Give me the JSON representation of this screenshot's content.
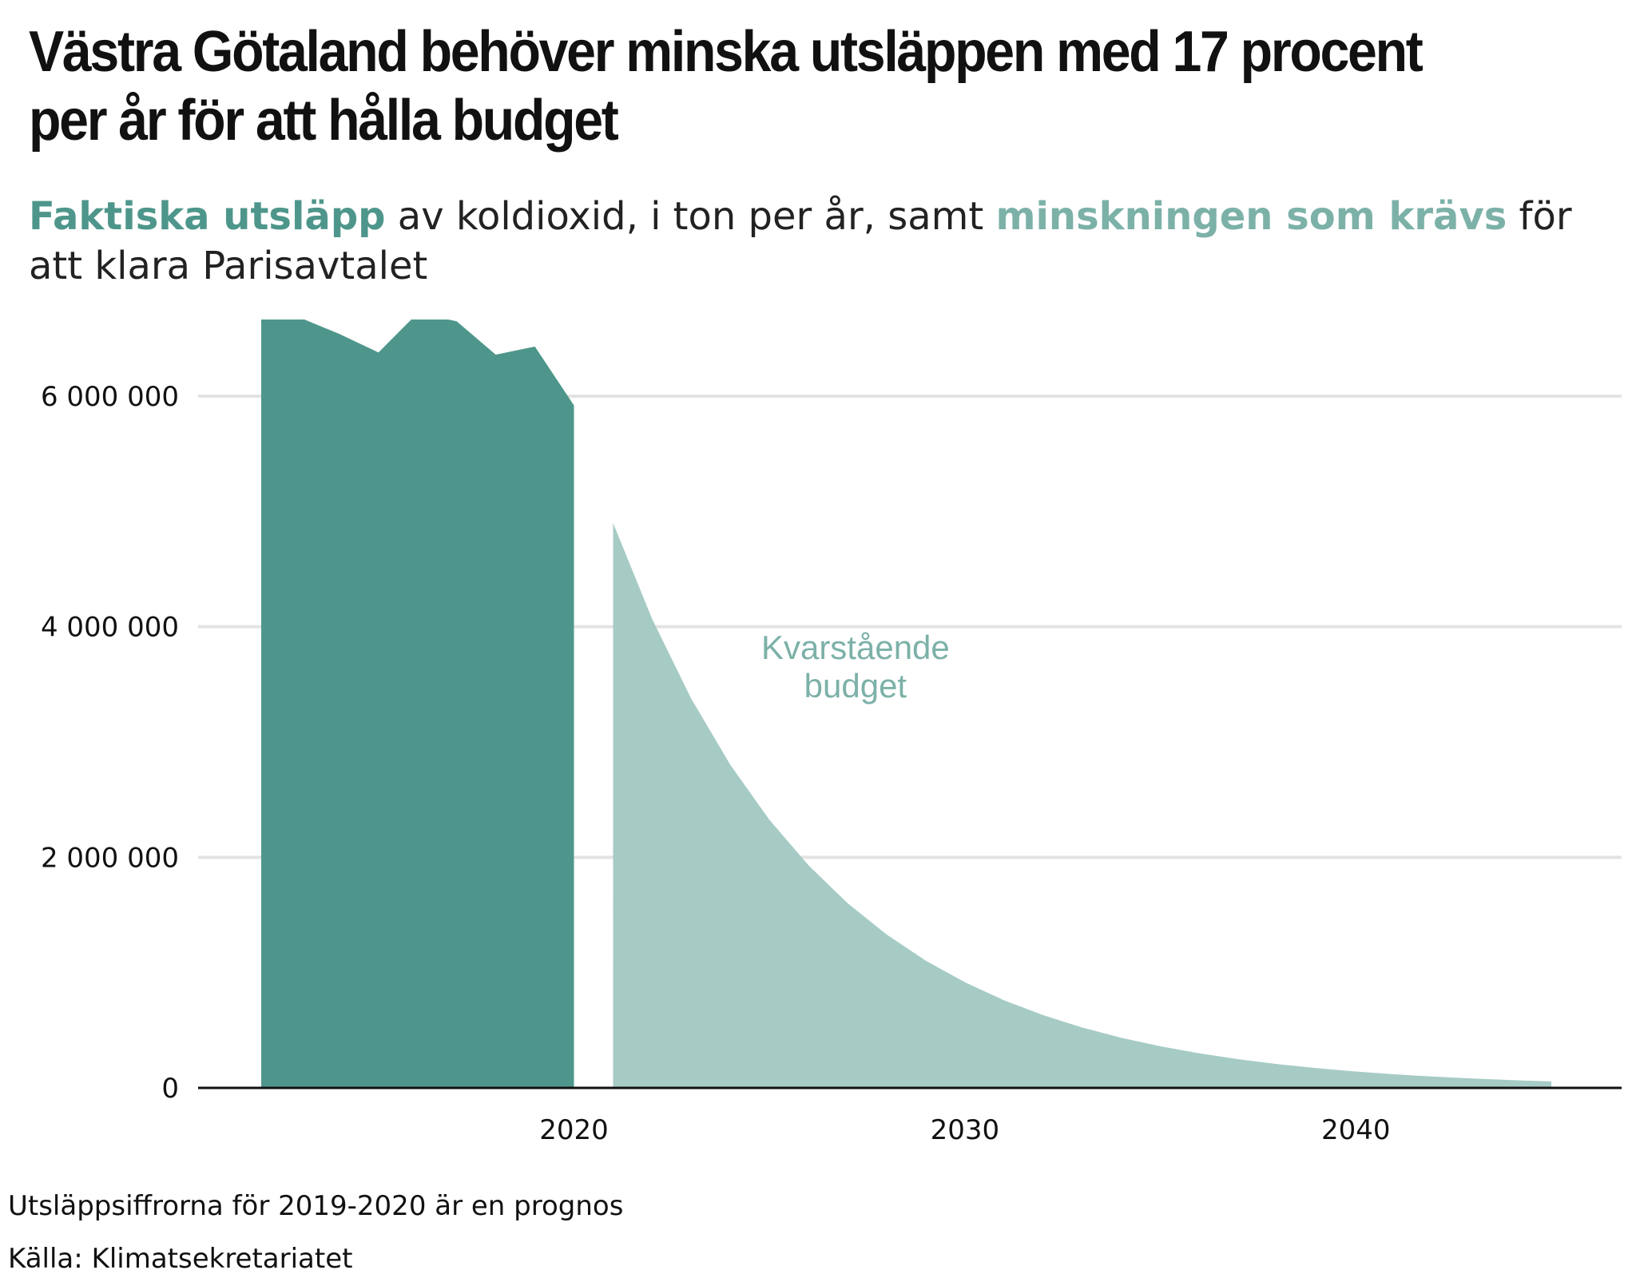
{
  "title": "Västra Götaland behöver minska utsläppen med 17 procent per år för att hålla budget",
  "subtitle": {
    "part1": "Faktiska utsläpp",
    "part2": " av koldioxid, i ton per år, samt ",
    "part3": "minskningen som krävs",
    "part4": " för att klara Parisavtalet"
  },
  "colors": {
    "actual": "#4e968b",
    "required": "#a6cbc5",
    "annotation": "#7cb1a8",
    "grid": "#e3e3e3",
    "axis": "#111111"
  },
  "chart_data": {
    "type": "area",
    "ylim": [
      0,
      7000000
    ],
    "xlim": [
      2010.4,
      2046.6
    ],
    "y_ticks": [
      {
        "value": 0,
        "label": "0"
      },
      {
        "value": 2000000,
        "label": "2 000 000"
      },
      {
        "value": 4000000,
        "label": "4 000 000"
      },
      {
        "value": 6000000,
        "label": "6 000 000"
      }
    ],
    "x_ticks": [
      {
        "value": 2020,
        "label": "2020"
      },
      {
        "value": 2030,
        "label": "2030"
      },
      {
        "value": 2040,
        "label": "2040"
      }
    ],
    "grid": true,
    "series": [
      {
        "name": "Faktiska utsläpp",
        "points": [
          [
            2012,
            6850000
          ],
          [
            2013,
            6680000
          ],
          [
            2014,
            6540000
          ],
          [
            2015,
            6380000
          ],
          [
            2016,
            6720000
          ],
          [
            2017,
            6650000
          ],
          [
            2018,
            6360000
          ],
          [
            2019,
            6430000
          ],
          [
            2020,
            5920000
          ]
        ]
      },
      {
        "name": "minskningen som krävs",
        "points": [
          [
            2021,
            4900000
          ],
          [
            2022,
            4067000
          ],
          [
            2023,
            3376000
          ],
          [
            2024,
            2802000
          ],
          [
            2025,
            2325000
          ],
          [
            2026,
            1930000
          ],
          [
            2027,
            1602000
          ],
          [
            2028,
            1330000
          ],
          [
            2029,
            1104000
          ],
          [
            2030,
            916000
          ],
          [
            2031,
            760000
          ],
          [
            2032,
            631000
          ],
          [
            2033,
            524000
          ],
          [
            2034,
            435000
          ],
          [
            2035,
            361000
          ],
          [
            2036,
            300000
          ],
          [
            2037,
            249000
          ],
          [
            2038,
            206000
          ],
          [
            2039,
            171000
          ],
          [
            2040,
            142000
          ],
          [
            2041,
            118000
          ],
          [
            2042,
            98000
          ],
          [
            2043,
            81000
          ],
          [
            2044,
            67000
          ],
          [
            2045,
            56000
          ]
        ]
      }
    ],
    "annotation": {
      "line1": "Kvarstående",
      "line2": "budget",
      "x": 2027.2,
      "y": 3500000
    }
  },
  "footnotes": {
    "note": "Utsläppsiffrorna för 2019-2020 är en prognos",
    "source": "Källa: Klimatsekretariatet"
  }
}
